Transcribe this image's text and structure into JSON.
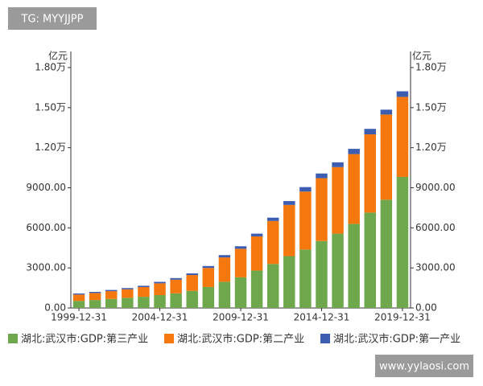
{
  "chart_data": {
    "type": "bar",
    "stacked": true,
    "y_label": "亿元",
    "y2_label": "亿元",
    "badge_top": "TG: MYYJJPP",
    "badge_bottom": "www.yylaosi.com",
    "categories": [
      "1999-12-31",
      null,
      null,
      null,
      null,
      "2004-12-31",
      null,
      null,
      null,
      null,
      "2009-12-31",
      null,
      null,
      null,
      null,
      "2014-12-31",
      null,
      null,
      null,
      null,
      "2019-12-31"
    ],
    "series": [
      {
        "name": "湖北:武汉市:GDP:第三产业",
        "color": "#6fa84c",
        "values": [
          530,
          595,
          677,
          761,
          837,
          963,
          1096,
          1284,
          1569,
          1963,
          2296,
          2803,
          3295,
          3882,
          4373,
          5013,
          5564,
          6296,
          7141,
          8107,
          9816
        ]
      },
      {
        "name": "湖北:武汉市:GDP:第二产业",
        "color": "#f5780f",
        "values": [
          475,
          528,
          583,
          640,
          729,
          883,
          1024,
          1182,
          1430,
          1824,
          2139,
          2557,
          3222,
          3834,
          4343,
          4705,
          4982,
          5227,
          5861,
          6377,
          5989
        ]
      },
      {
        "name": "湖北:武汉市:GDP:第一产业",
        "color": "#3c5db0",
        "values": [
          80,
          84,
          88,
          92,
          96,
          110,
          118,
          125,
          143,
          173,
          186,
          206,
          245,
          288,
          335,
          351,
          360,
          390,
          408,
          363,
          418
        ]
      }
    ],
    "ylim": [
      0,
      18000
    ],
    "yticks": [
      {
        "value": 0,
        "label": "0.00"
      },
      {
        "value": 3000,
        "label": "3000.00"
      },
      {
        "value": 6000,
        "label": "6000.00"
      },
      {
        "value": 9000,
        "label": "9000.00"
      },
      {
        "value": 12000,
        "label": "1.20万"
      },
      {
        "value": 15000,
        "label": "1.50万"
      },
      {
        "value": 18000,
        "label": "1.80万"
      }
    ],
    "y2lim": [
      0,
      18000
    ],
    "y2ticks": [
      {
        "value": 0,
        "label": "0.00"
      },
      {
        "value": 3000,
        "label": "3000.00"
      },
      {
        "value": 6000,
        "label": "6000.00"
      },
      {
        "value": 9000,
        "label": "9000.00"
      },
      {
        "value": 12000,
        "label": "1.20万"
      },
      {
        "value": 15000,
        "label": "1.50万"
      },
      {
        "value": 18000,
        "label": "1.80万"
      }
    ],
    "grid": false,
    "legend": "bottom"
  }
}
